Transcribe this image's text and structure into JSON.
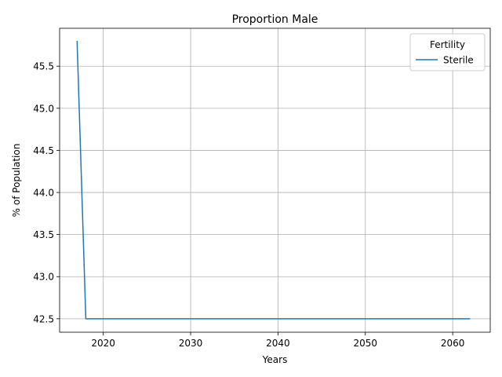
{
  "chart_data": {
    "type": "line",
    "title": "Proportion Male",
    "xlabel": "Years",
    "ylabel": "% of Population",
    "xlim": [
      2015,
      2064.3
    ],
    "ylim": [
      42.34,
      45.95
    ],
    "xticks": [
      2020,
      2030,
      2040,
      2050,
      2060
    ],
    "yticks": [
      42.5,
      43.0,
      43.5,
      44.0,
      44.5,
      45.0,
      45.5
    ],
    "grid": true,
    "legend": {
      "title": "Fertility",
      "placement": "top-right"
    },
    "series": [
      {
        "name": "Sterile",
        "color": "#1f77b4",
        "x": [
          2017,
          2018,
          2019,
          2020,
          2021,
          2022,
          2023,
          2024,
          2025,
          2026,
          2027,
          2028,
          2029,
          2030,
          2031,
          2032,
          2033,
          2034,
          2035,
          2036,
          2037,
          2038,
          2039,
          2040,
          2041,
          2042,
          2043,
          2044,
          2045,
          2046,
          2047,
          2048,
          2049,
          2050,
          2051,
          2052,
          2053,
          2054,
          2055,
          2056,
          2057,
          2058,
          2059,
          2060,
          2061,
          2062
        ],
        "y": [
          45.8,
          42.5,
          42.5,
          42.5,
          42.5,
          42.5,
          42.5,
          42.5,
          42.5,
          42.5,
          42.5,
          42.5,
          42.5,
          42.5,
          42.5,
          42.5,
          42.5,
          42.5,
          42.5,
          42.5,
          42.5,
          42.5,
          42.5,
          42.5,
          42.5,
          42.5,
          42.5,
          42.5,
          42.5,
          42.5,
          42.5,
          42.5,
          42.5,
          42.5,
          42.5,
          42.5,
          42.5,
          42.5,
          42.5,
          42.5,
          42.5,
          42.5,
          42.5,
          42.5,
          42.5,
          42.5
        ]
      }
    ]
  }
}
